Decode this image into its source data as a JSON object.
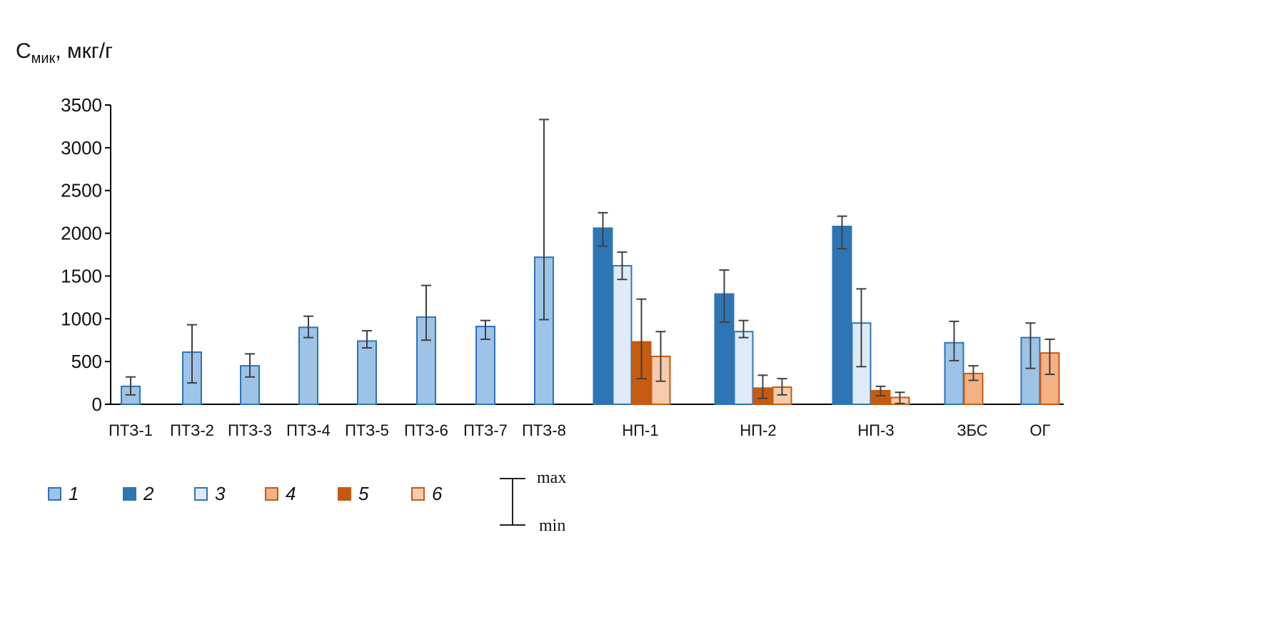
{
  "chart_data": {
    "type": "bar",
    "ylabel_main": "C",
    "ylabel_sub": "мик",
    "ylabel_unit": ", мкг/г",
    "ylim": [
      0,
      3500
    ],
    "yticks": [
      0,
      500,
      1000,
      1500,
      2000,
      2500,
      3000,
      3500
    ],
    "categories": [
      "ПТЗ-1",
      "ПТЗ-2",
      "ПТЗ-3",
      "ПТЗ-4",
      "ПТЗ-5",
      "ПТЗ-6",
      "ПТЗ-7",
      "ПТЗ-8",
      "НП-1",
      "НП-2",
      "НП-3",
      "ЗБС",
      "ОГ"
    ],
    "series": [
      {
        "name": "1",
        "fill": "#9dc3e6",
        "stroke": "#2e75b6"
      },
      {
        "name": "2",
        "fill": "#2e75b6",
        "stroke": "#2e75b6"
      },
      {
        "name": "3",
        "fill": "#deebf7",
        "stroke": "#2e75b6"
      },
      {
        "name": "4",
        "fill": "#f4b183",
        "stroke": "#c55a11"
      },
      {
        "name": "5",
        "fill": "#c55a11",
        "stroke": "#c55a11"
      },
      {
        "name": "6",
        "fill": "#f8cbad",
        "stroke": "#c55a11"
      }
    ],
    "bars": [
      [
        {
          "s": 0,
          "v": 210,
          "min": 110,
          "max": 320
        }
      ],
      [
        {
          "s": 0,
          "v": 610,
          "min": 250,
          "max": 930
        }
      ],
      [
        {
          "s": 0,
          "v": 450,
          "min": 320,
          "max": 590
        }
      ],
      [
        {
          "s": 0,
          "v": 900,
          "min": 780,
          "max": 1030
        }
      ],
      [
        {
          "s": 0,
          "v": 740,
          "min": 660,
          "max": 860
        }
      ],
      [
        {
          "s": 0,
          "v": 1020,
          "min": 750,
          "max": 1390
        }
      ],
      [
        {
          "s": 0,
          "v": 910,
          "min": 760,
          "max": 980
        }
      ],
      [
        {
          "s": 0,
          "v": 1720,
          "min": 990,
          "max": 3330
        }
      ],
      [
        {
          "s": 1,
          "v": 2060,
          "min": 1850,
          "max": 2240
        },
        {
          "s": 2,
          "v": 1620,
          "min": 1460,
          "max": 1780
        },
        {
          "s": 4,
          "v": 730,
          "min": 300,
          "max": 1230
        },
        {
          "s": 5,
          "v": 560,
          "min": 270,
          "max": 850
        }
      ],
      [
        {
          "s": 1,
          "v": 1290,
          "min": 960,
          "max": 1570
        },
        {
          "s": 2,
          "v": 850,
          "min": 780,
          "max": 980
        },
        {
          "s": 4,
          "v": 190,
          "min": 70,
          "max": 340
        },
        {
          "s": 5,
          "v": 200,
          "min": 110,
          "max": 300
        }
      ],
      [
        {
          "s": 1,
          "v": 2080,
          "min": 1820,
          "max": 2200
        },
        {
          "s": 2,
          "v": 950,
          "min": 440,
          "max": 1350
        },
        {
          "s": 4,
          "v": 160,
          "min": 100,
          "max": 210
        },
        {
          "s": 5,
          "v": 80,
          "min": 10,
          "max": 140
        }
      ],
      [
        {
          "s": 0,
          "v": 720,
          "min": 510,
          "max": 970
        },
        {
          "s": 3,
          "v": 360,
          "min": 280,
          "max": 450
        }
      ],
      [
        {
          "s": 0,
          "v": 780,
          "min": 420,
          "max": 950
        },
        {
          "s": 3,
          "v": 600,
          "min": 350,
          "max": 760
        }
      ]
    ],
    "errorbar_legend": {
      "max": "max",
      "min": "min"
    },
    "legend_placement": "bottom"
  }
}
